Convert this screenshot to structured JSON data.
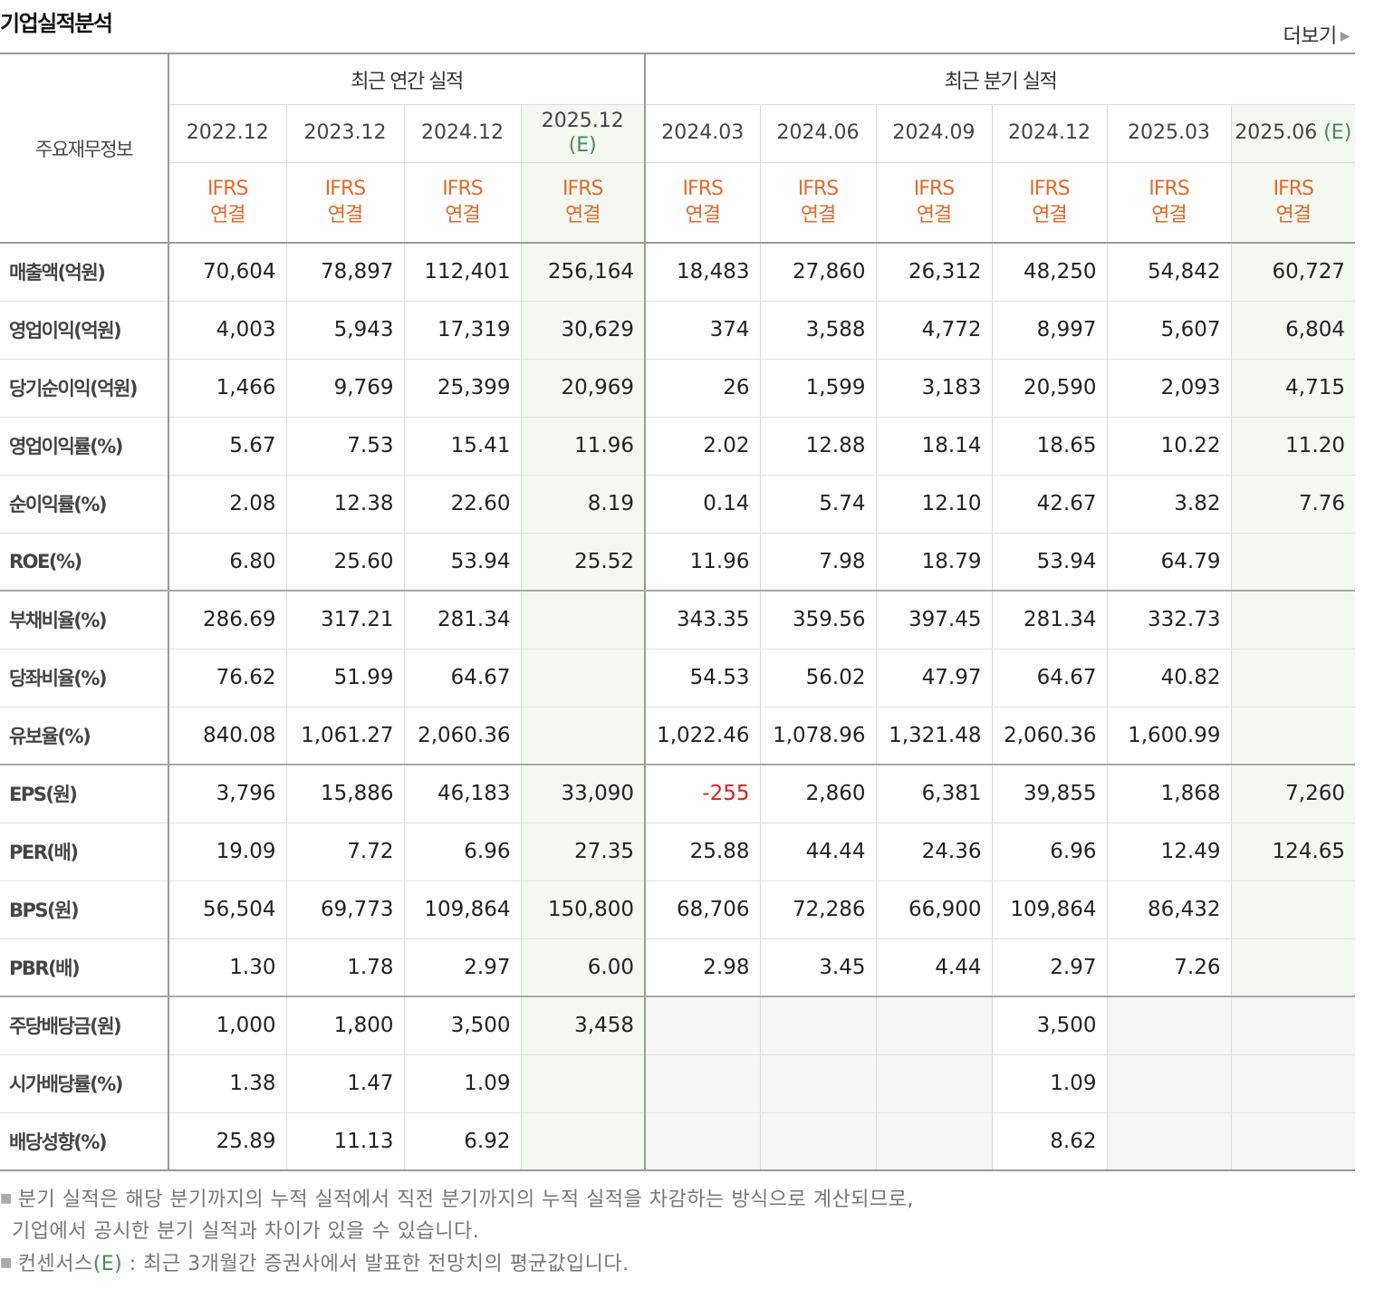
{
  "header": {
    "title": "기업실적분석",
    "more_label": "더보기"
  },
  "table": {
    "corner_label": "주요재무정보",
    "annual_label": "최근 연간 실적",
    "quarter_label": "최근 분기 실적",
    "ifrs_line1": "IFRS",
    "ifrs_line2": "연결",
    "est_tag": "(E)",
    "annual_periods": [
      "2022.12",
      "2023.12",
      "2024.12",
      "2025.12"
    ],
    "quarter_periods": [
      "2024.03",
      "2024.06",
      "2024.09",
      "2024.12",
      "2025.03",
      "2025.06"
    ],
    "rows": [
      {
        "label": "매출액(억원)",
        "values": [
          "70,604",
          "78,897",
          "112,401",
          "256,164",
          "18,483",
          "27,860",
          "26,312",
          "48,250",
          "54,842",
          "60,727"
        ]
      },
      {
        "label": "영업이익(억원)",
        "values": [
          "4,003",
          "5,943",
          "17,319",
          "30,629",
          "374",
          "3,588",
          "4,772",
          "8,997",
          "5,607",
          "6,804"
        ]
      },
      {
        "label": "당기순이익(억원)",
        "values": [
          "1,466",
          "9,769",
          "25,399",
          "20,969",
          "26",
          "1,599",
          "3,183",
          "20,590",
          "2,093",
          "4,715"
        ]
      },
      {
        "label": "영업이익률(%)",
        "values": [
          "5.67",
          "7.53",
          "15.41",
          "11.96",
          "2.02",
          "12.88",
          "18.14",
          "18.65",
          "10.22",
          "11.20"
        ]
      },
      {
        "label": "순이익률(%)",
        "values": [
          "2.08",
          "12.38",
          "22.60",
          "8.19",
          "0.14",
          "5.74",
          "12.10",
          "42.67",
          "3.82",
          "7.76"
        ]
      },
      {
        "label": "ROE(%)",
        "values": [
          "6.80",
          "25.60",
          "53.94",
          "25.52",
          "11.96",
          "7.98",
          "18.79",
          "53.94",
          "64.79",
          ""
        ]
      },
      {
        "label": "부채비율(%)",
        "values": [
          "286.69",
          "317.21",
          "281.34",
          "",
          "343.35",
          "359.56",
          "397.45",
          "281.34",
          "332.73",
          ""
        ]
      },
      {
        "label": "당좌비율(%)",
        "values": [
          "76.62",
          "51.99",
          "64.67",
          "",
          "54.53",
          "56.02",
          "47.97",
          "64.67",
          "40.82",
          ""
        ]
      },
      {
        "label": "유보율(%)",
        "values": [
          "840.08",
          "1,061.27",
          "2,060.36",
          "",
          "1,022.46",
          "1,078.96",
          "1,321.48",
          "2,060.36",
          "1,600.99",
          ""
        ]
      },
      {
        "label": "EPS(원)",
        "values": [
          "3,796",
          "15,886",
          "46,183",
          "33,090",
          "-255",
          "2,860",
          "6,381",
          "39,855",
          "1,868",
          "7,260"
        ]
      },
      {
        "label": "PER(배)",
        "values": [
          "19.09",
          "7.72",
          "6.96",
          "27.35",
          "25.88",
          "44.44",
          "24.36",
          "6.96",
          "12.49",
          "124.65"
        ]
      },
      {
        "label": "BPS(원)",
        "values": [
          "56,504",
          "69,773",
          "109,864",
          "150,800",
          "68,706",
          "72,286",
          "66,900",
          "109,864",
          "86,432",
          ""
        ]
      },
      {
        "label": "PBR(배)",
        "values": [
          "1.30",
          "1.78",
          "2.97",
          "6.00",
          "2.98",
          "3.45",
          "4.44",
          "2.97",
          "7.26",
          ""
        ]
      },
      {
        "label": "주당배당금(원)",
        "values": [
          "1,000",
          "1,800",
          "3,500",
          "3,458",
          "",
          "",
          "",
          "3,500",
          "",
          ""
        ]
      },
      {
        "label": "시가배당률(%)",
        "values": [
          "1.38",
          "1.47",
          "1.09",
          "",
          "",
          "",
          "",
          "1.09",
          "",
          ""
        ]
      },
      {
        "label": "배당성향(%)",
        "values": [
          "25.89",
          "11.13",
          "6.92",
          "",
          "",
          "",
          "",
          "8.62",
          "",
          ""
        ]
      }
    ]
  },
  "notes": {
    "line1": "분기 실적은 해당 분기까지의 누적 실적에서 직전 분기까지의 누적 실적을 차감하는 방식으로 계산되므로,",
    "line2": "기업에서 공시한 분기 실적과 차이가 있을 수 있습니다.",
    "line3_prefix": "컨센서스",
    "line3_suffix": " : 최근 3개월간 증권사에서 발표한 전망치의 평균값입니다."
  }
}
